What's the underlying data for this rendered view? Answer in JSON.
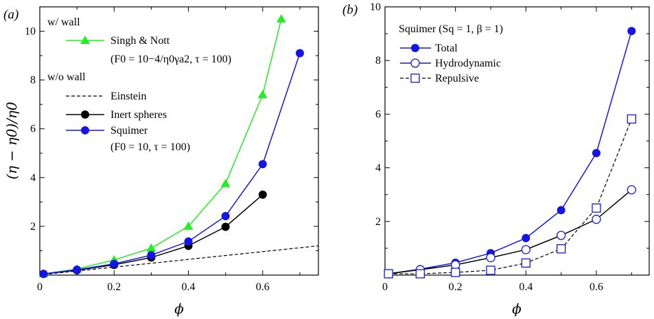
{
  "figure": {
    "panel_a_label": "(a)",
    "panel_b_label": "(b)"
  },
  "chart_data": [
    {
      "type": "line",
      "panel": "(a)",
      "xlabel": "ϕ",
      "ylabel": "(η − η0)/η0",
      "xlim": [
        0,
        0.75
      ],
      "ylim": [
        0,
        11
      ],
      "xticks": [
        "0",
        "0.2",
        "0.4",
        "0.6"
      ],
      "yticks": [
        "2",
        "4",
        "6",
        "8",
        "10"
      ],
      "legend": {
        "header_wall": "w/ wall",
        "header_nowall": "w/o wall",
        "singh_note": "(F0 = 10−4/η0γa2, τ = 100)",
        "squimer_note": "(F0 = 10, τ = 100)"
      },
      "series": [
        {
          "name": "Singh & Nott",
          "color": "#22ee22",
          "marker": "triangle",
          "x": [
            0.01,
            0.1,
            0.2,
            0.3,
            0.4,
            0.5,
            0.6,
            0.65
          ],
          "y": [
            0.05,
            0.25,
            0.62,
            1.1,
            2.0,
            3.75,
            7.4,
            10.5
          ]
        },
        {
          "name": "Einstein",
          "color": "#000000",
          "marker": "none",
          "dashed": true,
          "x": [
            0.01,
            0.75
          ],
          "y": [
            0.025,
            1.2
          ]
        },
        {
          "name": "Inert spheres",
          "color": "#000000",
          "marker": "circle",
          "x": [
            0.01,
            0.1,
            0.2,
            0.3,
            0.4,
            0.5,
            0.6
          ],
          "y": [
            0.05,
            0.2,
            0.42,
            0.72,
            1.2,
            1.98,
            3.3
          ]
        },
        {
          "name": "Squimer",
          "color": "#1414e6",
          "marker": "circle",
          "x": [
            0.01,
            0.1,
            0.2,
            0.3,
            0.4,
            0.5,
            0.6,
            0.7
          ],
          "y": [
            0.05,
            0.22,
            0.46,
            0.82,
            1.38,
            2.42,
            4.55,
            9.1
          ]
        }
      ]
    },
    {
      "type": "line",
      "panel": "(b)",
      "title": "Squimer (Sq = 1, β = 1)",
      "xlabel": "ϕ",
      "ylabel": "",
      "xlim": [
        0,
        0.75
      ],
      "ylim": [
        0,
        10
      ],
      "xticks": [
        "0",
        "0.2",
        "0.4",
        "0.6"
      ],
      "yticks": [
        "2",
        "4",
        "6",
        "8",
        "10"
      ],
      "series": [
        {
          "name": "Total",
          "color": "#1414e6",
          "marker": "circle-filled",
          "x": [
            0.01,
            0.1,
            0.2,
            0.3,
            0.4,
            0.5,
            0.6,
            0.7
          ],
          "y": [
            0.05,
            0.22,
            0.46,
            0.82,
            1.38,
            2.42,
            4.55,
            9.1
          ]
        },
        {
          "name": "Hydrodynamic",
          "color": "#000000",
          "marker": "circle-open",
          "x": [
            0.01,
            0.1,
            0.2,
            0.3,
            0.4,
            0.5,
            0.6,
            0.7
          ],
          "y": [
            0.05,
            0.2,
            0.38,
            0.65,
            0.95,
            1.48,
            2.08,
            3.18
          ]
        },
        {
          "name": "Repulsive",
          "color": "#000000",
          "marker": "square-open",
          "dashed": true,
          "x": [
            0.01,
            0.1,
            0.2,
            0.3,
            0.4,
            0.5,
            0.6,
            0.7
          ],
          "y": [
            0.05,
            0.05,
            0.1,
            0.18,
            0.45,
            0.98,
            2.5,
            5.82
          ]
        }
      ]
    }
  ]
}
